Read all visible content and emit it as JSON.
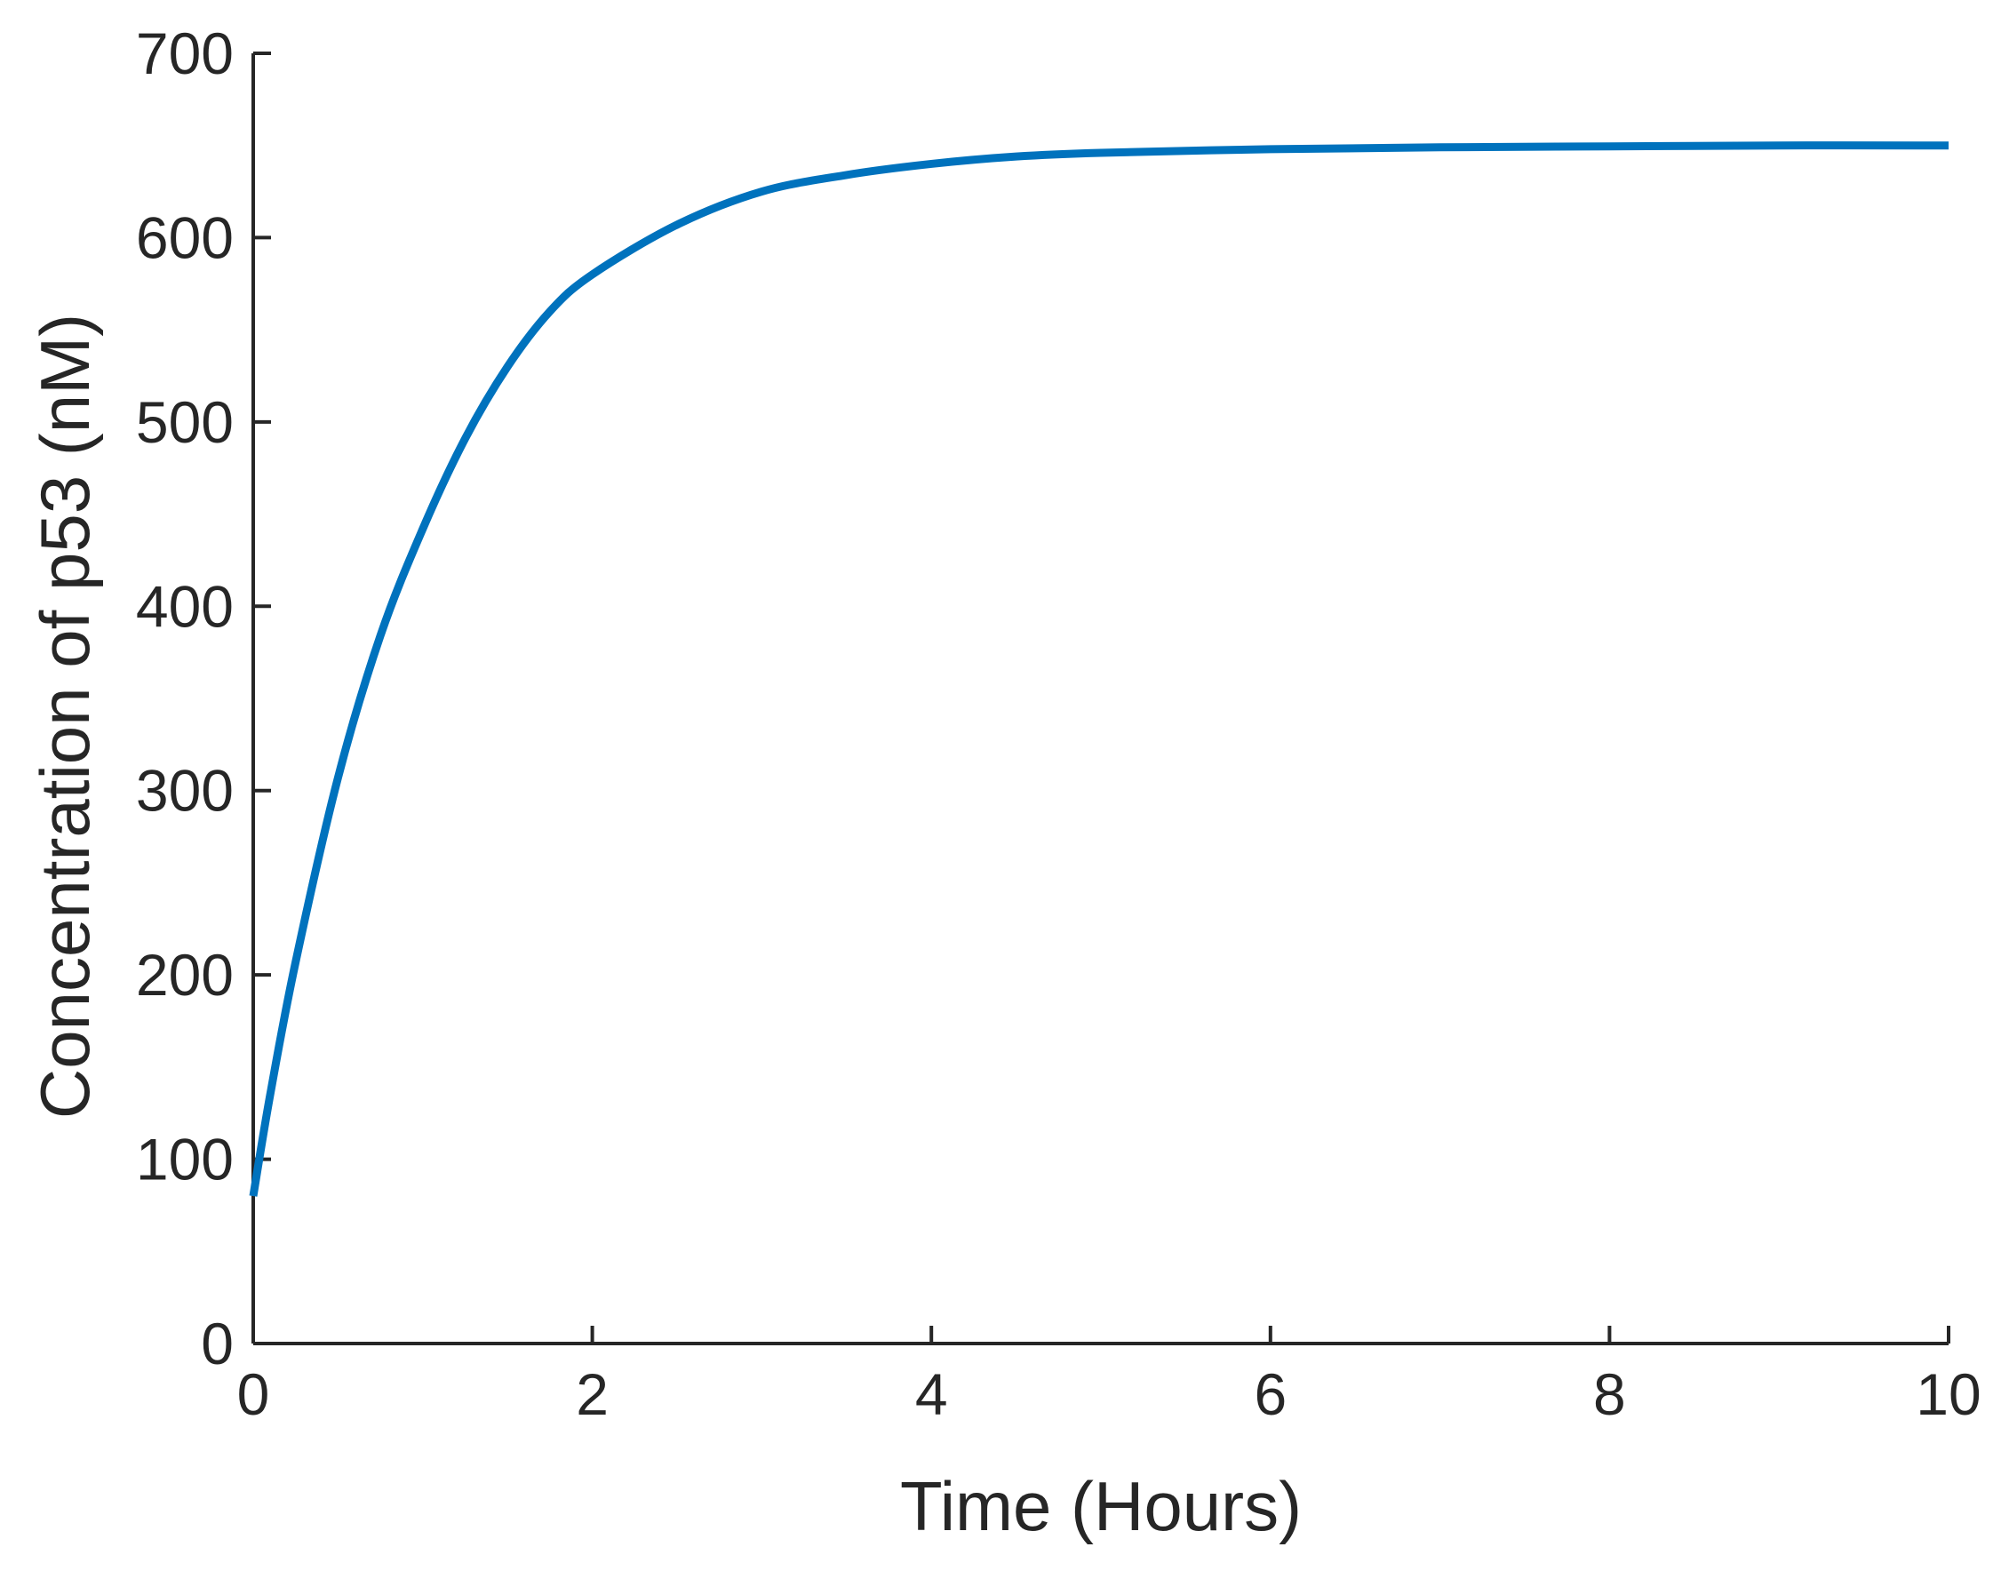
{
  "chart_data": {
    "type": "line",
    "title": "",
    "xlabel": "Time (Hours)",
    "ylabel": "Concentration of p53 (nM)",
    "xlim": [
      0,
      10
    ],
    "ylim": [
      0,
      700
    ],
    "xticks": [
      "0",
      "2",
      "4",
      "6",
      "8",
      "10"
    ],
    "yticks": [
      "0",
      "100",
      "200",
      "300",
      "400",
      "500",
      "600",
      "700"
    ],
    "grid": false,
    "line_color": "#0072BD",
    "series": [
      {
        "x": [
          0,
          0.1,
          0.25,
          0.5,
          0.75,
          1.0,
          1.25,
          1.5,
          1.75,
          2.0,
          2.5,
          3.0,
          3.5,
          4.0,
          4.5,
          5.0,
          6.0,
          7.0,
          8.0,
          9.0,
          10.0
        ],
        "values": [
          80,
          135,
          207,
          307,
          384,
          442,
          491,
          530,
          560,
          580,
          607,
          625,
          634,
          640,
          644,
          646,
          648,
          649,
          649.5,
          650,
          650
        ]
      }
    ]
  }
}
